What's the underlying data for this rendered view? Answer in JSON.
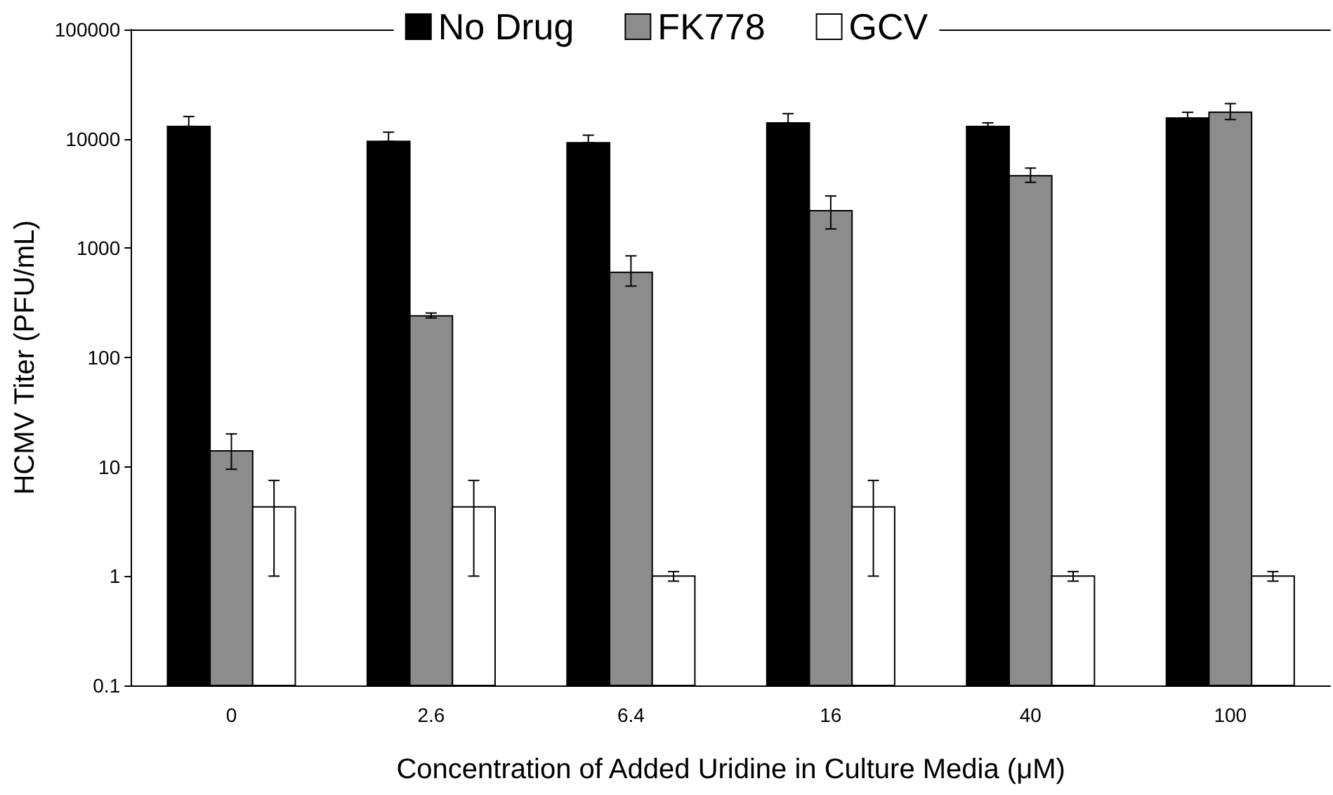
{
  "chart_data": {
    "type": "bar",
    "ylabel": "HCMV Titer (PFU/mL)",
    "xlabel": "Concentration of Added Uridine in Culture Media (μM)",
    "categories": [
      "0",
      "2.6",
      "6.4",
      "16",
      "40",
      "100"
    ],
    "series": [
      {
        "name": "No Drug",
        "color": "#000000",
        "values": [
          13000,
          9500,
          9200,
          14000,
          13000,
          15500
        ],
        "errors": [
          [
            13000,
            16000
          ],
          [
            9500,
            11500
          ],
          [
            9200,
            10800
          ],
          [
            14000,
            17000
          ],
          [
            13000,
            14000
          ],
          [
            15500,
            17500
          ]
        ]
      },
      {
        "name": "FK778",
        "color": "#8c8c8c",
        "values": [
          14,
          240,
          600,
          2200,
          4600,
          17500
        ],
        "errors": [
          [
            9.5,
            20
          ],
          [
            230,
            255
          ],
          [
            450,
            850
          ],
          [
            1500,
            3000
          ],
          [
            4000,
            5400
          ],
          [
            15000,
            21000
          ]
        ]
      },
      {
        "name": "GCV",
        "color": "#ffffff",
        "values": [
          4.3,
          4.3,
          1,
          4.3,
          1,
          1
        ],
        "errors": [
          [
            1,
            7.5
          ],
          [
            1,
            7.5
          ],
          [
            0.9,
            1.1
          ],
          [
            1,
            7.5
          ],
          [
            0.9,
            1.1
          ],
          [
            0.9,
            1.1
          ]
        ]
      }
    ],
    "log": "y",
    "ylim": [
      0.1,
      100000
    ],
    "yticks": [
      0.1,
      1,
      10,
      100,
      1000,
      10000,
      100000
    ],
    "grid": false,
    "legend": "top"
  }
}
